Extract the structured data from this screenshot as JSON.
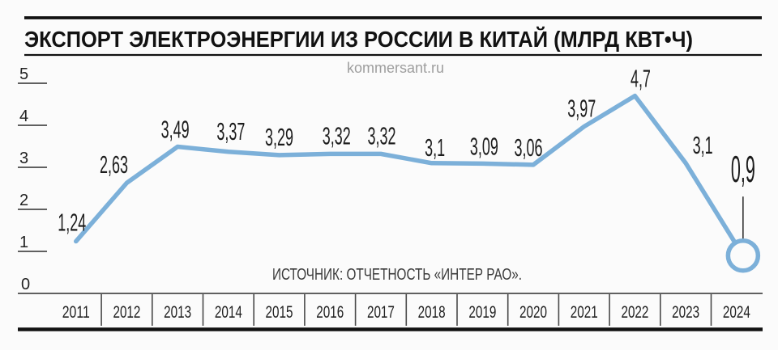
{
  "header": {
    "title": "ЭКСПОРТ ЭЛЕКТРОЭНЕРГИИ ИЗ РОССИИ В КИТАЙ (МЛРД КВТ•Ч)"
  },
  "watermark": "kommersant.ru",
  "source": {
    "label": "ИСТОЧНИК: ОТЧЕТНОСТЬ «ИНТЕР РАО»."
  },
  "colors": {
    "line": "#7cb0d9",
    "ink": "#121212",
    "label_ink": "#1c1c1c",
    "axis": "#4a4a4a",
    "watermark": "#9e9e9e",
    "source_text": "#3a3a3a",
    "background": "#fbfbfb"
  },
  "chart_data": {
    "type": "line",
    "title": "ЭКСПОРТ ЭЛЕКТРОЭНЕРГИИ ИЗ РОССИИ В КИТАЙ (МЛРД КВТ•Ч)",
    "categories": [
      "2011",
      "2012",
      "2013",
      "2014",
      "2015",
      "2016",
      "2017",
      "2018",
      "2019",
      "2020",
      "2021",
      "2022",
      "2023",
      "2024"
    ],
    "values": [
      1.24,
      2.63,
      3.49,
      3.37,
      3.29,
      3.32,
      3.32,
      3.1,
      3.09,
      3.06,
      3.97,
      4.7,
      3.1,
      0.9
    ],
    "value_labels": [
      "1,24",
      "2,63",
      "3,49",
      "3,37",
      "3,29",
      "3,32",
      "3,32",
      "3,1",
      "3,09",
      "3,06",
      "3,97",
      "4,7",
      "3,1",
      "0,9"
    ],
    "xlabel": "",
    "ylabel": "",
    "yticks": [
      0,
      1,
      2,
      3,
      4,
      5
    ],
    "ylim": [
      0,
      5
    ],
    "grid": false,
    "legend": "none",
    "last_point_marker": "open-circle",
    "emphasized_last_label": true,
    "label_dx": [
      -5,
      -16,
      -3,
      3,
      0,
      8,
      1,
      4,
      2,
      -6,
      -3,
      7,
      21,
      0
    ],
    "label_dy": [
      -13,
      -12,
      -11,
      -15,
      -12,
      -12,
      -12,
      -9,
      -11,
      -11,
      -12,
      -11,
      -12,
      -91
    ]
  }
}
